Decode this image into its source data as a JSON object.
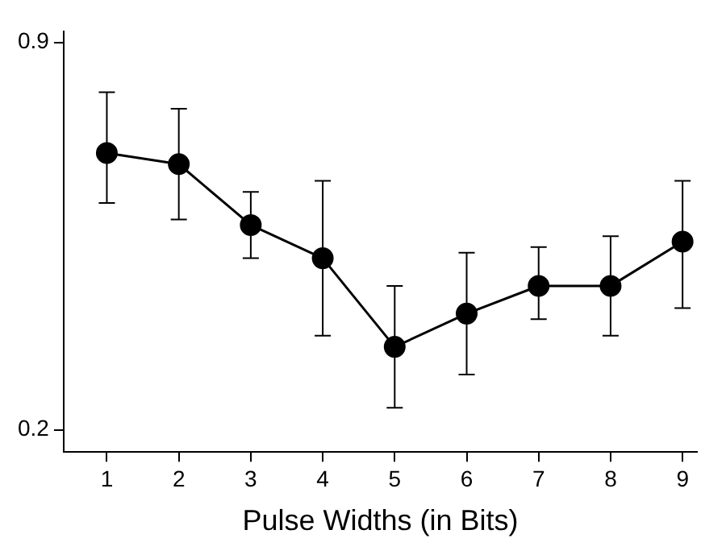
{
  "chart_data": {
    "type": "line",
    "xlabel": "Pulse Widths (in Bits)",
    "x": [
      1,
      2,
      3,
      4,
      5,
      6,
      7,
      8,
      9
    ],
    "series": [
      {
        "color": "#000000",
        "values": [
          0.7,
          0.68,
          0.57,
          0.51,
          0.35,
          0.41,
          0.46,
          0.46,
          0.54
        ],
        "errors": [
          [
            0.61,
            0.81
          ],
          [
            0.58,
            0.78
          ],
          [
            0.51,
            0.63
          ],
          [
            0.37,
            0.65
          ],
          [
            0.24,
            0.46
          ],
          [
            0.3,
            0.52
          ],
          [
            0.4,
            0.53
          ],
          [
            0.37,
            0.55
          ],
          [
            0.42,
            0.65
          ]
        ]
      }
    ],
    "xlim": [
      0.4,
      9.2
    ],
    "xticks": [
      1,
      2,
      3,
      4,
      5,
      6,
      7,
      8,
      9
    ],
    "ylim": [
      0.16,
      0.92
    ],
    "yticks": [
      0.2,
      0.9
    ],
    "grid": false,
    "legend": false,
    "marker": "circle",
    "line_style": "solid"
  }
}
